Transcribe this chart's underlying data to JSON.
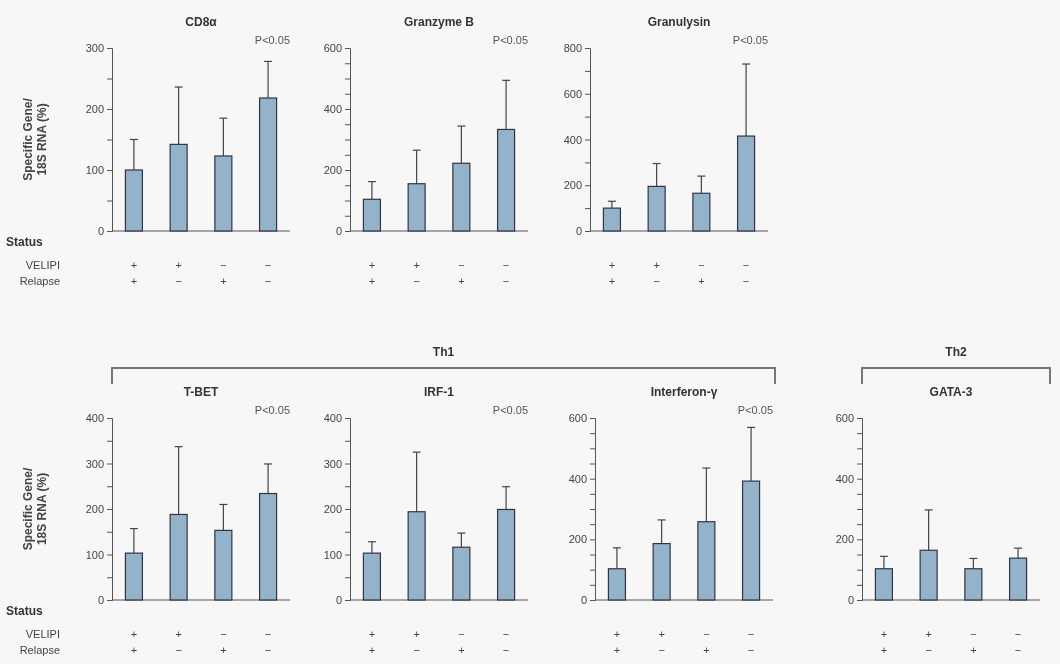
{
  "chart_data": [
    {
      "type": "bar",
      "title": "CD8α",
      "ylabel": "Specific Gene/\n18S RNA (%)",
      "xlabel": "Status\nVELIPI\nRelapse",
      "categories": [
        "+\n+",
        "+\n−",
        "−\n+",
        "−\n−"
      ],
      "values": [
        100,
        142,
        123,
        218
      ],
      "errors": [
        [
          100,
          150
        ],
        [
          142,
          236
        ],
        [
          123,
          185
        ],
        [
          218,
          278
        ]
      ],
      "color": "#93b3cb",
      "ylim": [
        0,
        300
      ],
      "yticks": [
        0,
        {
          "value": 50,
          "label": null
        },
        100,
        {
          "value": 150,
          "label": null
        },
        200,
        {
          "value": 250,
          "label": null
        },
        300
      ],
      "annotations": [
        "P<0.05"
      ]
    },
    {
      "type": "bar",
      "title": "Granzyme B",
      "categories": [
        "+\n+",
        "+\n−",
        "−\n+",
        "−\n−"
      ],
      "values": [
        104,
        155,
        222,
        333
      ],
      "errors": [
        [
          104,
          162
        ],
        [
          155,
          265
        ],
        [
          222,
          344
        ],
        [
          333,
          494
        ]
      ],
      "color": "#93b3cb",
      "ylim": [
        0,
        600
      ],
      "yticks": [
        0,
        {
          "value": 50,
          "label": null
        },
        {
          "value": 100,
          "label": null
        },
        {
          "value": 150,
          "label": null
        },
        200,
        {
          "value": 250,
          "label": null
        },
        {
          "value": 300,
          "label": null
        },
        {
          "value": 350,
          "label": null
        },
        400,
        {
          "value": 450,
          "label": null
        },
        {
          "value": 500,
          "label": null
        },
        {
          "value": 550,
          "label": null
        },
        600
      ],
      "annotations": [
        "P<0.05"
      ]
    },
    {
      "type": "bar",
      "title": "Granulysin",
      "categories": [
        "+\n+",
        "+\n−",
        "−\n+",
        "−\n−"
      ],
      "values": [
        100,
        195,
        165,
        415
      ],
      "errors": [
        [
          100,
          130
        ],
        [
          195,
          295
        ],
        [
          165,
          240
        ],
        [
          415,
          730
        ]
      ],
      "color": "#93b3cb",
      "ylim": [
        0,
        800
      ],
      "yticks": [
        0,
        {
          "value": 100,
          "label": null
        },
        200,
        {
          "value": 300,
          "label": null
        },
        400,
        {
          "value": 500,
          "label": null
        },
        600,
        {
          "value": 700,
          "label": null
        },
        800
      ],
      "annotations": [
        "P<0.05"
      ]
    },
    {
      "type": "bar",
      "title": "T-BET",
      "ylabel": "Specific Gene/\n18S RNA (%)",
      "xlabel": "Status\nVELIPI\nRelapse",
      "categories": [
        "+\n+",
        "+\n−",
        "−\n+",
        "−\n−"
      ],
      "values": [
        103,
        188,
        153,
        234
      ],
      "errors": [
        [
          103,
          157
        ],
        [
          188,
          337
        ],
        [
          153,
          210
        ],
        [
          234,
          299
        ]
      ],
      "color": "#93b3cb",
      "ylim": [
        0,
        400
      ],
      "yticks": [
        0,
        {
          "value": 50,
          "label": null
        },
        100,
        {
          "value": 150,
          "label": null
        },
        200,
        {
          "value": 250,
          "label": null
        },
        300,
        {
          "value": 350,
          "label": null
        },
        400
      ],
      "annotations": [
        "P<0.05"
      ]
    },
    {
      "type": "bar",
      "title": "IRF-1",
      "subtitle": "Th1",
      "categories": [
        "+\n+",
        "+\n−",
        "−\n+",
        "−\n−"
      ],
      "values": [
        103,
        194,
        116,
        199
      ],
      "errors": [
        [
          103,
          128
        ],
        [
          194,
          325
        ],
        [
          116,
          147
        ],
        [
          199,
          249
        ]
      ],
      "color": "#93b3cb",
      "ylim": [
        0,
        400
      ],
      "yticks": [
        0,
        {
          "value": 50,
          "label": null
        },
        100,
        {
          "value": 150,
          "label": null
        },
        200,
        {
          "value": 250,
          "label": null
        },
        300,
        {
          "value": 350,
          "label": null
        },
        400
      ],
      "annotations": [
        "P<0.05"
      ]
    },
    {
      "type": "bar",
      "title": "Interferon-γ",
      "categories": [
        "+\n+",
        "+\n−",
        "−\n+",
        "−\n−"
      ],
      "values": [
        103,
        186,
        258,
        392
      ],
      "errors": [
        [
          103,
          172
        ],
        [
          186,
          264
        ],
        [
          258,
          435
        ],
        [
          392,
          569
        ]
      ],
      "color": "#93b3cb",
      "ylim": [
        0,
        600
      ],
      "yticks": [
        0,
        {
          "value": 50,
          "label": null
        },
        {
          "value": 100,
          "label": null
        },
        {
          "value": 150,
          "label": null
        },
        200,
        {
          "value": 250,
          "label": null
        },
        {
          "value": 300,
          "label": null
        },
        {
          "value": 350,
          "label": null
        },
        400,
        {
          "value": 450,
          "label": null
        },
        {
          "value": 500,
          "label": null
        },
        {
          "value": 550,
          "label": null
        },
        600
      ],
      "annotations": [
        "P<0.05"
      ]
    },
    {
      "type": "bar",
      "title": "GATA-3",
      "subtitle": "Th2",
      "categories": [
        "+\n+",
        "+\n−",
        "−\n+",
        "−\n−"
      ],
      "values": [
        103,
        164,
        103,
        138
      ],
      "errors": [
        [
          103,
          144
        ],
        [
          164,
          297
        ],
        [
          103,
          137
        ],
        [
          138,
          171
        ]
      ],
      "color": "#93b3cb",
      "ylim": [
        0,
        600
      ],
      "yticks": [
        0,
        {
          "value": 50,
          "label": null
        },
        {
          "value": 100,
          "label": null
        },
        {
          "value": 150,
          "label": null
        },
        200,
        {
          "value": 250,
          "label": null
        },
        {
          "value": 300,
          "label": null
        },
        {
          "value": 350,
          "label": null
        },
        400,
        {
          "value": 450,
          "label": null
        },
        {
          "value": 500,
          "label": null
        },
        {
          "value": 550,
          "label": null
        },
        600
      ]
    }
  ]
}
